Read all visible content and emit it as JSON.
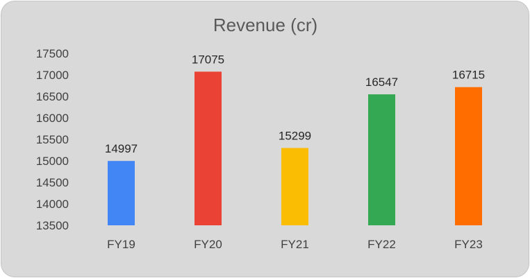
{
  "chart_data": {
    "type": "bar",
    "title": "Revenue (cr)",
    "xlabel": "",
    "ylabel": "",
    "categories": [
      "FY19",
      "FY20",
      "FY21",
      "FY22",
      "FY23"
    ],
    "values": [
      14997,
      17075,
      15299,
      16547,
      16715
    ],
    "data_labels": [
      "14997",
      "17075",
      "15299",
      "16547",
      "16715"
    ],
    "ylim": [
      13500,
      17500
    ],
    "y_ticks": [
      "17500",
      "17000",
      "16500",
      "16000",
      "15500",
      "15000",
      "14500",
      "14000",
      "13500"
    ],
    "grid": false,
    "legend": "none",
    "colors": [
      "#4285f4",
      "#ea4335",
      "#fbbc04",
      "#34a853",
      "#ff6d01"
    ],
    "background": "#d9d9d9"
  }
}
